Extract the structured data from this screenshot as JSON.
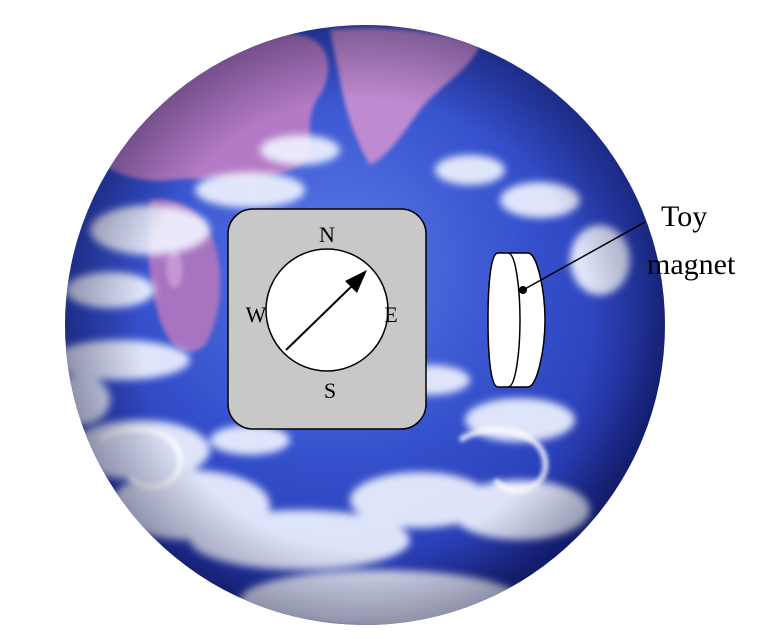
{
  "compass": {
    "north": "N",
    "east": "E",
    "south": "S",
    "west": "W"
  },
  "magnet_label": {
    "line1": "Toy",
    "line2": "magnet"
  },
  "colors": {
    "ocean_deep": "#1f2fa8",
    "ocean_mid": "#3f5fd6",
    "land_purple": "#b878c8",
    "cloud_white": "#f4f6ff",
    "compass_body": "#c8c8c8",
    "compass_face": "#ffffff",
    "outline": "#000000"
  }
}
